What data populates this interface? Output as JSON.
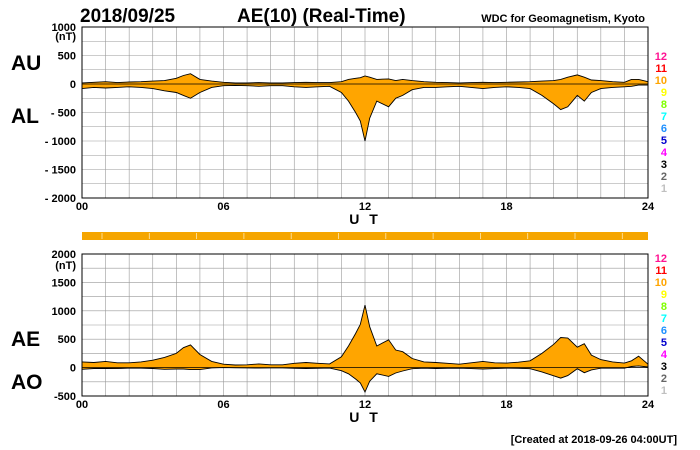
{
  "header": {
    "date": "2018/09/25",
    "title": "AE(10) (Real-Time)",
    "credit": "WDC for Geomagnetism, Kyoto"
  },
  "footer": {
    "created": "[Created at 2018-09-26 04:00UT]"
  },
  "colors": {
    "fill": "#ffa500",
    "outline": "#000000",
    "grid": "#999999",
    "bar": "#f5a500"
  },
  "stations_legend": [
    {
      "label": "12",
      "color": "#ff1493"
    },
    {
      "label": "11",
      "color": "#ff0000"
    },
    {
      "label": "10",
      "color": "#ffa500"
    },
    {
      "label": "9",
      "color": "#ffff00"
    },
    {
      "label": "8",
      "color": "#7fff00"
    },
    {
      "label": "7",
      "color": "#00ffff"
    },
    {
      "label": "6",
      "color": "#1e90ff"
    },
    {
      "label": "5",
      "color": "#0000cd"
    },
    {
      "label": "4",
      "color": "#ff00ff"
    },
    {
      "label": "3",
      "color": "#000000"
    },
    {
      "label": "2",
      "color": "#666666"
    },
    {
      "label": "1",
      "color": "#c0c0c0"
    }
  ],
  "chart_data": [
    {
      "type": "area",
      "id": "au-al",
      "upper_label": "AU",
      "lower_label": "AL",
      "unit": "(nT)",
      "xlabel": "U T",
      "xlim": [
        0,
        24
      ],
      "ylim": [
        -2000,
        1000
      ],
      "x_ticks": [
        "00",
        "06",
        "12",
        "18",
        "24"
      ],
      "y_ticks": [
        "1000",
        "500",
        "0",
        "- 500",
        "- 1000",
        "- 1500",
        "- 2000"
      ],
      "series": [
        {
          "name": "AU",
          "x": [
            0,
            0.5,
            1,
            1.5,
            2,
            2.5,
            3,
            3.5,
            4,
            4.3,
            4.6,
            5,
            5.5,
            6,
            6.5,
            7,
            7.5,
            8,
            8.5,
            9,
            9.5,
            10,
            10.5,
            11,
            11.3,
            11.6,
            11.8,
            12,
            12.2,
            12.5,
            13,
            13.3,
            13.6,
            14,
            14.5,
            15,
            15.5,
            16,
            16.5,
            17,
            17.5,
            18,
            18.5,
            19,
            19.5,
            20,
            20.3,
            20.6,
            21,
            21.3,
            21.6,
            22,
            22.5,
            23,
            23.3,
            23.6,
            24
          ],
          "values": [
            20,
            30,
            40,
            25,
            35,
            40,
            50,
            60,
            100,
            150,
            180,
            80,
            50,
            30,
            20,
            20,
            25,
            20,
            20,
            25,
            30,
            25,
            25,
            40,
            80,
            100,
            110,
            140,
            120,
            80,
            90,
            60,
            80,
            60,
            40,
            30,
            25,
            20,
            25,
            30,
            25,
            30,
            35,
            40,
            50,
            60,
            80,
            120,
            160,
            120,
            70,
            60,
            40,
            30,
            80,
            80,
            40
          ]
        },
        {
          "name": "AL",
          "x": [
            0,
            0.5,
            1,
            1.5,
            2,
            2.5,
            3,
            3.5,
            4,
            4.3,
            4.6,
            5,
            5.5,
            6,
            6.5,
            7,
            7.5,
            8,
            8.5,
            9,
            9.5,
            10,
            10.5,
            11,
            11.3,
            11.6,
            11.8,
            12,
            12.2,
            12.5,
            13,
            13.3,
            13.6,
            14,
            14.5,
            15,
            15.5,
            16,
            16.5,
            17,
            17.5,
            18,
            18.5,
            19,
            19.5,
            20,
            20.3,
            20.6,
            21,
            21.3,
            21.6,
            22,
            22.5,
            23,
            23.3,
            23.6,
            24
          ],
          "values": [
            -80,
            -60,
            -70,
            -60,
            -50,
            -60,
            -80,
            -120,
            -150,
            -200,
            -250,
            -150,
            -60,
            -30,
            -25,
            -30,
            -40,
            -30,
            -30,
            -50,
            -60,
            -50,
            -40,
            -150,
            -300,
            -500,
            -650,
            -1000,
            -600,
            -300,
            -400,
            -250,
            -200,
            -100,
            -60,
            -60,
            -50,
            -40,
            -60,
            -80,
            -60,
            -50,
            -60,
            -80,
            -200,
            -350,
            -450,
            -400,
            -200,
            -300,
            -150,
            -80,
            -60,
            -50,
            -40,
            -20,
            -20
          ]
        }
      ]
    },
    {
      "type": "area",
      "id": "ae-ao",
      "upper_label": "AE",
      "lower_label": "AO",
      "unit": "(nT)",
      "xlabel": "U T",
      "xlim": [
        0,
        24
      ],
      "ylim": [
        -500,
        2000
      ],
      "x_ticks": [
        "00",
        "06",
        "12",
        "18",
        "24"
      ],
      "y_ticks": [
        "2000",
        "1500",
        "1000",
        "500",
        "0",
        "-500"
      ],
      "series": [
        {
          "name": "AE",
          "x": [
            0,
            0.5,
            1,
            1.5,
            2,
            2.5,
            3,
            3.5,
            4,
            4.3,
            4.6,
            5,
            5.5,
            6,
            6.5,
            7,
            7.5,
            8,
            8.5,
            9,
            9.5,
            10,
            10.5,
            11,
            11.3,
            11.6,
            11.8,
            12,
            12.2,
            12.5,
            13,
            13.3,
            13.6,
            14,
            14.5,
            15,
            15.5,
            16,
            16.5,
            17,
            17.5,
            18,
            18.5,
            19,
            19.5,
            20,
            20.3,
            20.6,
            21,
            21.3,
            21.6,
            22,
            22.5,
            23,
            23.3,
            23.6,
            24
          ],
          "values": [
            100,
            90,
            110,
            85,
            85,
            100,
            130,
            180,
            250,
            350,
            400,
            230,
            110,
            60,
            45,
            50,
            65,
            50,
            50,
            75,
            90,
            75,
            65,
            190,
            380,
            600,
            760,
            1100,
            720,
            380,
            490,
            310,
            280,
            160,
            100,
            90,
            75,
            60,
            85,
            110,
            85,
            80,
            95,
            120,
            250,
            410,
            530,
            520,
            360,
            420,
            220,
            140,
            100,
            80,
            120,
            200,
            60
          ]
        },
        {
          "name": "AO",
          "x": [
            0,
            0.5,
            1,
            1.5,
            2,
            2.5,
            3,
            3.5,
            4,
            4.3,
            4.6,
            5,
            5.5,
            6,
            6.5,
            7,
            7.5,
            8,
            8.5,
            9,
            9.5,
            10,
            10.5,
            11,
            11.3,
            11.6,
            11.8,
            12,
            12.2,
            12.5,
            13,
            13.3,
            13.6,
            14,
            14.5,
            15,
            15.5,
            16,
            16.5,
            17,
            17.5,
            18,
            18.5,
            19,
            19.5,
            20,
            20.3,
            20.6,
            21,
            21.3,
            21.6,
            22,
            22.5,
            23,
            23.3,
            23.6,
            24
          ],
          "values": [
            -30,
            -15,
            -15,
            -18,
            -8,
            -10,
            -15,
            -30,
            -25,
            -25,
            -35,
            -35,
            -5,
            0,
            -3,
            -5,
            -8,
            -5,
            -5,
            -12,
            -15,
            -12,
            -8,
            -55,
            -110,
            -200,
            -270,
            -430,
            -240,
            -110,
            -155,
            -95,
            -60,
            -20,
            -10,
            -15,
            -12,
            -10,
            -18,
            -25,
            -18,
            -10,
            -12,
            -20,
            -75,
            -145,
            -185,
            -140,
            -20,
            -90,
            -40,
            -10,
            -10,
            -10,
            20,
            30,
            10
          ]
        }
      ]
    }
  ]
}
